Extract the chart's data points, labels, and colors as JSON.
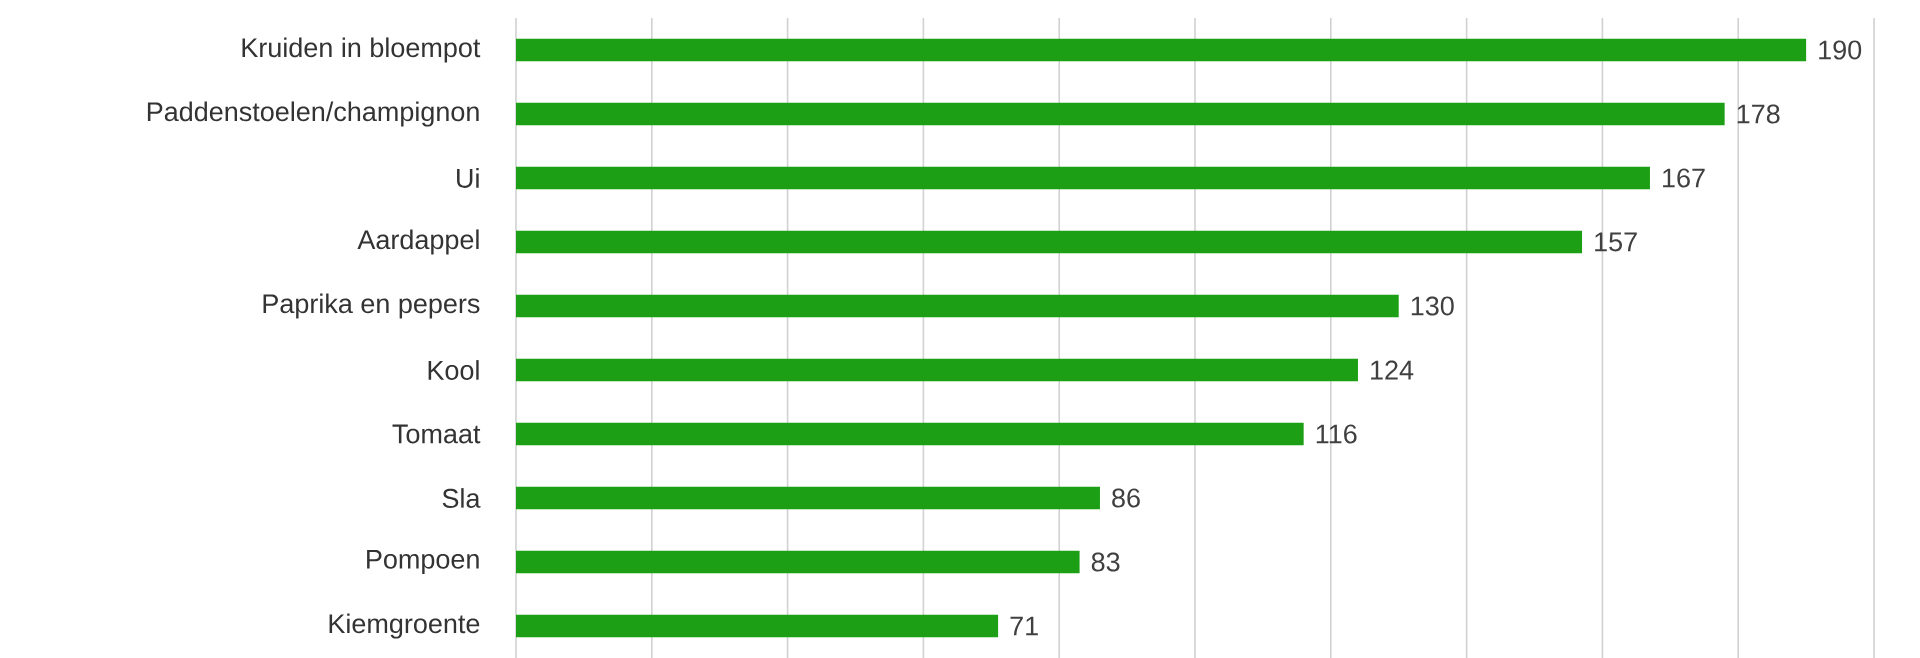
{
  "chart_data": {
    "type": "bar",
    "orientation": "horizontal",
    "categories": [
      "Kruiden in bloempot",
      "Paddenstoelen/champignon",
      "Ui",
      "Aardappel",
      "Paprika en pepers",
      "Kool",
      "Tomaat",
      "Sla",
      "Pompoen",
      "Kiemgroente"
    ],
    "values": [
      190,
      178,
      167,
      157,
      130,
      124,
      116,
      86,
      83,
      71
    ],
    "color": "#1c9f14",
    "data_labels": true,
    "xlim": [
      0,
      200
    ],
    "xticks": [
      0,
      20,
      40,
      60,
      80,
      100,
      120,
      140,
      160,
      180,
      200
    ],
    "tick_labels": "y",
    "grid": "x"
  }
}
